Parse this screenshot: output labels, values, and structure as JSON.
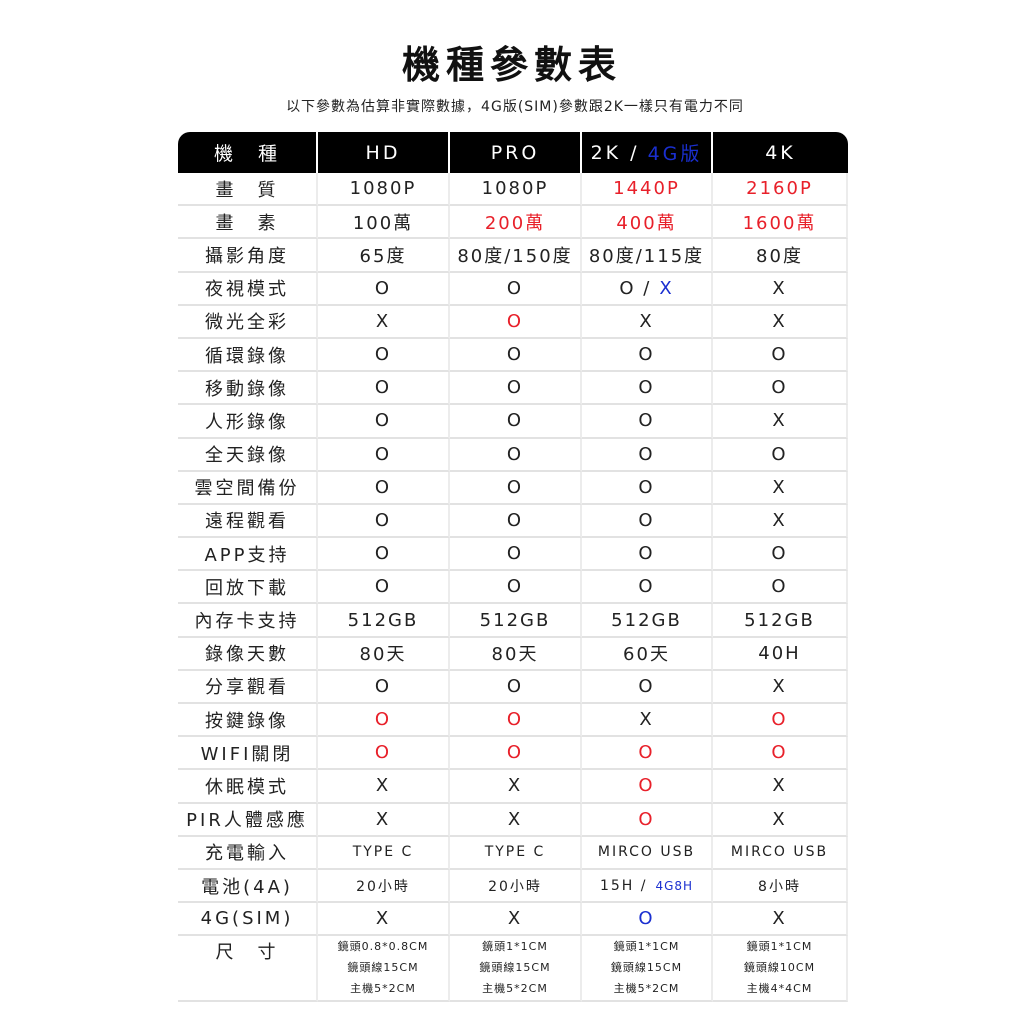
{
  "title": "機種參數表",
  "subtitle": "以下參數為估算非實際數據，4G版(SIM)參數跟2K一樣只有電力不同",
  "colors": {
    "red": "#e8202a",
    "blue": "#1a2fd0",
    "black": "#222222",
    "header_bg": "#000000"
  },
  "header": [
    {
      "text": "機　種"
    },
    {
      "text": "HD"
    },
    {
      "text": "PRO"
    },
    {
      "text": "2K /",
      "extra": "4G版",
      "extra_color": "blue"
    },
    {
      "text": "4K"
    }
  ],
  "rows": [
    {
      "label": "畫　質",
      "cells": [
        {
          "text": "1080P"
        },
        {
          "text": "1080P"
        },
        {
          "text": "1440P",
          "color": "red"
        },
        {
          "text": "2160P",
          "color": "red"
        }
      ]
    },
    {
      "label": "畫　素",
      "cells": [
        {
          "text": "100萬"
        },
        {
          "text": "200萬",
          "color": "red"
        },
        {
          "text": "400萬",
          "color": "red"
        },
        {
          "text": "1600萬",
          "color": "red"
        }
      ]
    },
    {
      "label": "攝影角度",
      "cells": [
        {
          "text": "65度"
        },
        {
          "text": "80度/150度"
        },
        {
          "text": "80度/115度"
        },
        {
          "text": "80度"
        }
      ]
    },
    {
      "label": "夜視模式",
      "cells": [
        {
          "text": "O"
        },
        {
          "text": "O"
        },
        {
          "text": "O /",
          "extra": "X",
          "extra_color": "blue"
        },
        {
          "text": "X"
        }
      ]
    },
    {
      "label": "微光全彩",
      "cells": [
        {
          "text": "X"
        },
        {
          "text": "O",
          "color": "red"
        },
        {
          "text": "X"
        },
        {
          "text": "X"
        }
      ]
    },
    {
      "label": "循環錄像",
      "cells": [
        {
          "text": "O"
        },
        {
          "text": "O"
        },
        {
          "text": "O"
        },
        {
          "text": "O"
        }
      ]
    },
    {
      "label": "移動錄像",
      "cells": [
        {
          "text": "O"
        },
        {
          "text": "O"
        },
        {
          "text": "O"
        },
        {
          "text": "O"
        }
      ]
    },
    {
      "label": "人形錄像",
      "cells": [
        {
          "text": "O"
        },
        {
          "text": "O"
        },
        {
          "text": "O"
        },
        {
          "text": "X"
        }
      ]
    },
    {
      "label": "全天錄像",
      "cells": [
        {
          "text": "O"
        },
        {
          "text": "O"
        },
        {
          "text": "O"
        },
        {
          "text": "O"
        }
      ]
    },
    {
      "label": "雲空間備份",
      "cells": [
        {
          "text": "O"
        },
        {
          "text": "O"
        },
        {
          "text": "O"
        },
        {
          "text": "X"
        }
      ]
    },
    {
      "label": "遠程觀看",
      "cells": [
        {
          "text": "O"
        },
        {
          "text": "O"
        },
        {
          "text": "O"
        },
        {
          "text": "X"
        }
      ]
    },
    {
      "label": "APP支持",
      "cells": [
        {
          "text": "O"
        },
        {
          "text": "O"
        },
        {
          "text": "O"
        },
        {
          "text": "O"
        }
      ]
    },
    {
      "label": "回放下載",
      "cells": [
        {
          "text": "O"
        },
        {
          "text": "O"
        },
        {
          "text": "O"
        },
        {
          "text": "O"
        }
      ]
    },
    {
      "label": "內存卡支持",
      "cells": [
        {
          "text": "512GB"
        },
        {
          "text": "512GB"
        },
        {
          "text": "512GB"
        },
        {
          "text": "512GB"
        }
      ]
    },
    {
      "label": "錄像天數",
      "cells": [
        {
          "text": "80天"
        },
        {
          "text": "80天"
        },
        {
          "text": "60天"
        },
        {
          "text": "40H"
        }
      ]
    },
    {
      "label": "分享觀看",
      "cells": [
        {
          "text": "O"
        },
        {
          "text": "O"
        },
        {
          "text": "O"
        },
        {
          "text": "X"
        }
      ]
    },
    {
      "label": "按鍵錄像",
      "cells": [
        {
          "text": "O",
          "color": "red"
        },
        {
          "text": "O",
          "color": "red"
        },
        {
          "text": "X"
        },
        {
          "text": "O",
          "color": "red"
        }
      ]
    },
    {
      "label": "WIFI關閉",
      "cells": [
        {
          "text": "O",
          "color": "red"
        },
        {
          "text": "O",
          "color": "red"
        },
        {
          "text": "O",
          "color": "red"
        },
        {
          "text": "O",
          "color": "red"
        }
      ]
    },
    {
      "label": "休眠模式",
      "cells": [
        {
          "text": "X"
        },
        {
          "text": "X"
        },
        {
          "text": "O",
          "color": "red"
        },
        {
          "text": "X"
        }
      ]
    },
    {
      "label": "PIR人體感應",
      "cells": [
        {
          "text": "X"
        },
        {
          "text": "X"
        },
        {
          "text": "O",
          "color": "red"
        },
        {
          "text": "X"
        }
      ]
    },
    {
      "label": "充電輸入",
      "small": true,
      "cells": [
        {
          "text": "TYPE C"
        },
        {
          "text": "TYPE C"
        },
        {
          "text": "MIRCO USB"
        },
        {
          "text": "MIRCO USB"
        }
      ]
    },
    {
      "label": "電池(4A)",
      "small": true,
      "cells": [
        {
          "text": "20小時"
        },
        {
          "text": "20小時"
        },
        {
          "text": "15H /",
          "extra": "4G8H",
          "extra_color": "blue"
        },
        {
          "text": "8小時"
        }
      ]
    },
    {
      "label": "4G(SIM)",
      "cells": [
        {
          "text": "X"
        },
        {
          "text": "X"
        },
        {
          "text": "O",
          "color": "blue"
        },
        {
          "text": "X"
        }
      ]
    }
  ],
  "size_row": {
    "label": "尺　寸",
    "cells": [
      [
        "鏡頭0.8*0.8CM",
        "鏡頭線15CM",
        "主機5*2CM"
      ],
      [
        "鏡頭1*1CM",
        "鏡頭線15CM",
        "主機5*2CM"
      ],
      [
        "鏡頭1*1CM",
        "鏡頭線15CM",
        "主機5*2CM"
      ],
      [
        "鏡頭1*1CM",
        "鏡頭線10CM",
        "主機4*4CM"
      ]
    ]
  }
}
